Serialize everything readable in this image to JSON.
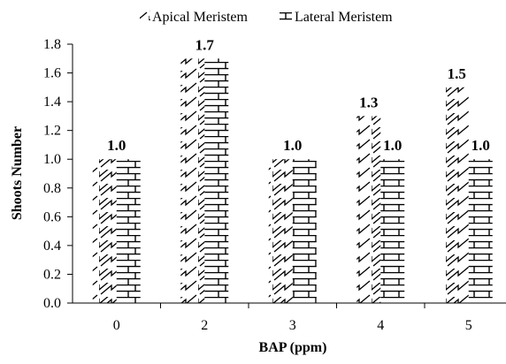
{
  "chart_data": {
    "type": "bar",
    "title": "",
    "xlabel": "BAP (ppm)",
    "ylabel": "Shoots Number",
    "categories": [
      "0",
      "2",
      "3",
      "4",
      "5"
    ],
    "ylim": [
      0,
      1.8
    ],
    "yticks": [
      "0.0",
      "0.2",
      "0.4",
      "0.6",
      "0.8",
      "1.0",
      "1.2",
      "1.4",
      "1.6",
      "1.8"
    ],
    "grid": false,
    "legend_position": "top",
    "series": [
      {
        "name": "Apical Meristem",
        "pattern": "diagonal-zigzag",
        "values": [
          1.0,
          1.7,
          1.0,
          1.3,
          1.5
        ]
      },
      {
        "name": "Lateral Meristem",
        "pattern": "brick",
        "values": [
          1.0,
          1.7,
          1.0,
          1.0,
          1.0
        ]
      }
    ],
    "data_labels": [
      {
        "category": "0",
        "text": "1.0"
      },
      {
        "category": "2",
        "text": "1.7"
      },
      {
        "category": "3",
        "text": "1.0"
      },
      {
        "category": "4",
        "series": "Apical Meristem",
        "text": "1.3"
      },
      {
        "category": "4",
        "series": "Lateral Meristem",
        "text": "1.0"
      },
      {
        "category": "5",
        "series": "Apical Meristem",
        "text": "1.5"
      },
      {
        "category": "5",
        "series": "Lateral Meristem",
        "text": "1.0"
      }
    ],
    "colors": {
      "axis": "#000000",
      "bar_fill": "#ffffff",
      "pattern": "#000000"
    }
  }
}
